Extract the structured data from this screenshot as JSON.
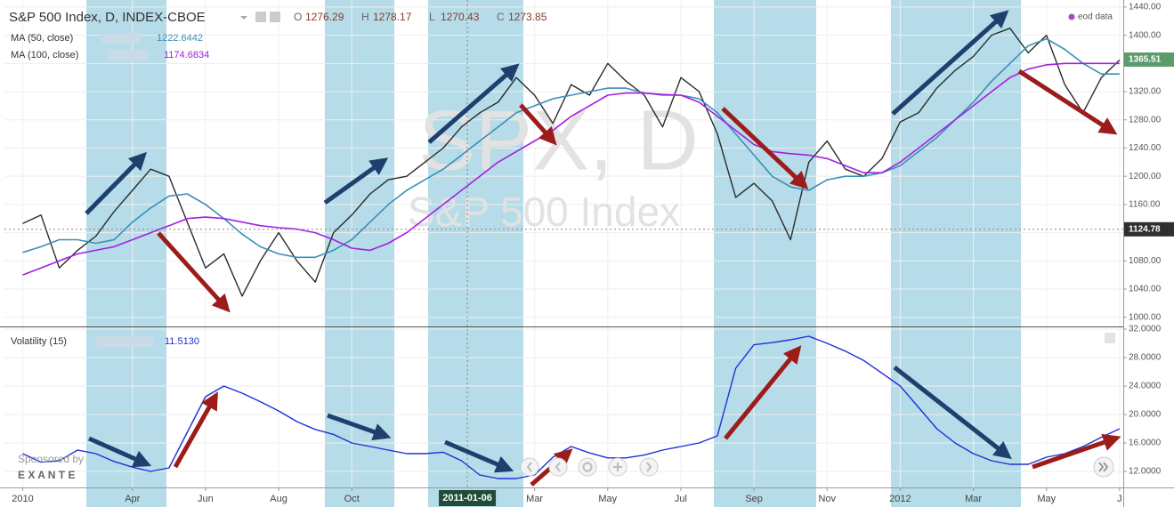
{
  "header": {
    "ohlc": [
      {
        "label": "O",
        "value": 1276.29
      },
      {
        "label": "H",
        "value": 1278.17
      },
      {
        "label": "L",
        "value": 1270.43
      },
      {
        "label": "C",
        "value": 1273.85
      }
    ],
    "watermark_symbol": "SPX, D",
    "watermark_name": "S&P 500 Index",
    "source": "eod data",
    "sponsor": "Sponsored by",
    "sponsor_name": "E X A N T E"
  },
  "chart_data": [
    {
      "type": "line",
      "x": [
        0,
        0.5,
        1,
        1.5,
        2,
        2.5,
        3,
        3.5,
        4,
        4.5,
        5,
        5.5,
        6,
        6.5,
        7,
        7.5,
        8,
        8.5,
        9,
        9.5,
        10,
        10.5,
        11,
        11.5,
        12,
        12.5,
        13,
        13.5,
        14,
        14.5,
        15,
        15.5,
        16,
        16.5,
        17,
        17.5,
        18,
        18.5,
        19,
        19.5,
        20,
        20.5,
        21,
        21.5,
        22,
        22.5,
        23,
        23.5,
        24,
        24.5,
        25,
        25.5,
        26,
        26.5,
        27,
        27.5,
        28,
        28.5,
        29,
        29.5,
        30
      ],
      "xlim": [
        -0.5,
        30.1
      ],
      "ylim": [
        987,
        1450
      ],
      "yticks": [
        {
          "value": 1000,
          "label": "1000.00"
        },
        {
          "value": 1040,
          "label": "1040.00"
        },
        {
          "value": 1080,
          "label": "1080.00"
        },
        {
          "value": 1120,
          "label": "1120.00"
        },
        {
          "value": 1160,
          "label": "1160.00"
        },
        {
          "value": 1200,
          "label": "1200.00"
        },
        {
          "value": 1240,
          "label": "1240.00"
        },
        {
          "value": 1280,
          "label": "1280.00"
        },
        {
          "value": 1320,
          "label": "1320.00"
        },
        {
          "value": 1360,
          "label": "1360.00"
        },
        {
          "value": 1400,
          "label": "1400.00"
        },
        {
          "value": 1440,
          "label": "1440.00"
        }
      ],
      "grid": true,
      "last_value": 1365.51,
      "last_value_color": "#5c9c6c",
      "cursor": {
        "x": 12.16,
        "x_label": "2011-01-06",
        "y": 1124.78
      },
      "series": [
        {
          "name": "S&P 500 Index, D, INDEX-CBOE",
          "color": "#2b2b2b",
          "values": [
            1133,
            1145,
            1070,
            1095,
            1115,
            1150,
            1180,
            1210,
            1200,
            1135,
            1070,
            1090,
            1030,
            1080,
            1120,
            1080,
            1050,
            1120,
            1145,
            1175,
            1195,
            1200,
            1220,
            1240,
            1270,
            1290,
            1305,
            1340,
            1315,
            1275,
            1330,
            1315,
            1360,
            1335,
            1315,
            1270,
            1340,
            1320,
            1260,
            1170,
            1190,
            1165,
            1110,
            1220,
            1250,
            1210,
            1200,
            1225,
            1277,
            1290,
            1325,
            1350,
            1370,
            1400,
            1410,
            1375,
            1400,
            1330,
            1290,
            1340,
            1365
          ]
        },
        {
          "name": "MA (50, close)",
          "color": "#3a8fb7",
          "legend_value": 1222.6442,
          "values": [
            1092,
            1100,
            1110,
            1110,
            1105,
            1110,
            1135,
            1155,
            1172,
            1175,
            1160,
            1140,
            1118,
            1100,
            1090,
            1085,
            1085,
            1095,
            1110,
            1135,
            1160,
            1180,
            1195,
            1210,
            1230,
            1250,
            1270,
            1290,
            1300,
            1310,
            1315,
            1320,
            1325,
            1325,
            1318,
            1315,
            1315,
            1310,
            1290,
            1260,
            1230,
            1200,
            1185,
            1180,
            1195,
            1200,
            1200,
            1205,
            1215,
            1235,
            1255,
            1280,
            1305,
            1335,
            1360,
            1385,
            1395,
            1380,
            1360,
            1345,
            1345
          ]
        },
        {
          "name": "MA (100, close)",
          "color": "#a41fe0",
          "legend_value": 1174.6834,
          "values": [
            1060,
            1070,
            1080,
            1090,
            1095,
            1100,
            1110,
            1120,
            1130,
            1140,
            1142,
            1140,
            1135,
            1130,
            1127,
            1125,
            1120,
            1110,
            1098,
            1095,
            1105,
            1120,
            1140,
            1160,
            1180,
            1200,
            1220,
            1235,
            1250,
            1265,
            1285,
            1300,
            1315,
            1318,
            1318,
            1316,
            1315,
            1305,
            1285,
            1265,
            1245,
            1235,
            1232,
            1230,
            1225,
            1215,
            1205,
            1205,
            1220,
            1240,
            1260,
            1280,
            1300,
            1320,
            1340,
            1352,
            1358,
            1360,
            1360,
            1360,
            1360
          ]
        }
      ]
    },
    {
      "type": "line",
      "x": [
        0,
        0.5,
        1,
        1.5,
        2,
        2.5,
        3,
        3.5,
        4,
        4.5,
        5,
        5.5,
        6,
        6.5,
        7,
        7.5,
        8,
        8.5,
        9,
        9.5,
        10,
        10.5,
        11,
        11.5,
        12,
        12.5,
        13,
        13.5,
        14,
        14.5,
        15,
        15.5,
        16,
        16.5,
        17,
        17.5,
        18,
        18.5,
        19,
        19.5,
        20,
        20.5,
        21,
        21.5,
        22,
        22.5,
        23,
        23.5,
        24,
        24.5,
        25,
        25.5,
        26,
        26.5,
        27,
        27.5,
        28,
        28.5,
        29,
        29.5,
        30
      ],
      "xlim": [
        -0.5,
        30.1
      ],
      "xticks": [
        {
          "value": 0,
          "label": "2010"
        },
        {
          "value": 3,
          "label": "Apr"
        },
        {
          "value": 5,
          "label": "Jun"
        },
        {
          "value": 7,
          "label": "Aug"
        },
        {
          "value": 9,
          "label": "Oct"
        },
        {
          "value": 14,
          "label": "Mar"
        },
        {
          "value": 16,
          "label": "May"
        },
        {
          "value": 18,
          "label": "Jul"
        },
        {
          "value": 20,
          "label": "Sep"
        },
        {
          "value": 22,
          "label": "Nov"
        },
        {
          "value": 24,
          "label": "2012"
        },
        {
          "value": 26,
          "label": "Mar"
        },
        {
          "value": 28,
          "label": "May"
        },
        {
          "value": 30,
          "label": "J"
        }
      ],
      "ylim": [
        9.75,
        32.25
      ],
      "yticks": [
        {
          "value": 12,
          "label": "12.0000"
        },
        {
          "value": 16,
          "label": "16.0000"
        },
        {
          "value": 20,
          "label": "20.0000"
        },
        {
          "value": 24,
          "label": "24.0000"
        },
        {
          "value": 28,
          "label": "28.0000"
        },
        {
          "value": 32,
          "label": "32.0000"
        }
      ],
      "grid": true,
      "series": [
        {
          "name": "Volatility (15)",
          "color": "#1f2fd6",
          "legend_value": 11.513,
          "legend_label": "11.5130",
          "values": [
            14.5,
            13.3,
            13.5,
            15,
            14.5,
            13.4,
            12.6,
            12,
            12.5,
            17.5,
            22.5,
            24,
            23,
            21.8,
            20.5,
            19,
            17.9,
            17.2,
            16,
            15.5,
            15,
            14.5,
            14.5,
            14.7,
            13.5,
            11.5,
            11,
            11,
            11.5,
            14,
            15.5,
            14.6,
            13.9,
            13.9,
            14.3,
            15,
            15.5,
            16,
            17,
            26.5,
            29.8,
            30.1,
            30.5,
            31,
            30,
            28.9,
            27.6,
            25.8,
            24,
            21,
            18,
            16,
            14.5,
            13.5,
            13,
            13,
            14,
            14.5,
            15.5,
            16.8,
            18
          ]
        }
      ]
    }
  ]
}
